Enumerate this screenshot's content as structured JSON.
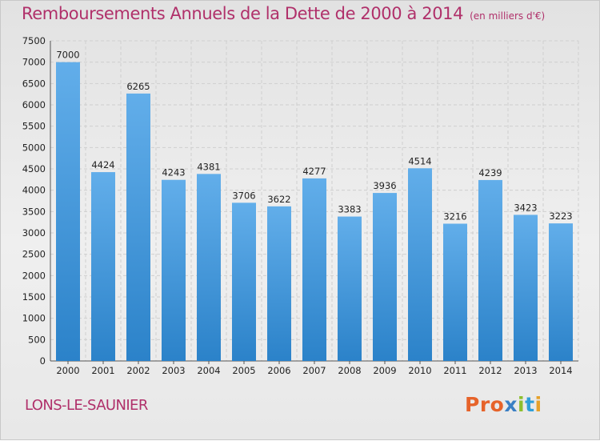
{
  "header": {
    "title": "Remboursements Annuels de la Dette de 2000 à 2014",
    "subtitle": "(en milliers d'€)"
  },
  "footer": {
    "city": "LONS-LE-SAUNIER",
    "brand": "Proxiti",
    "brand_colors": [
      "#e6632a",
      "#e6632a",
      "#e6632a",
      "#3a7fc4",
      "#8dbf2e",
      "#2f9fd8",
      "#e6a12a"
    ]
  },
  "colors": {
    "title": "#b0306a",
    "bar_light": "#62aeea",
    "bar_dark": "#2b82c9",
    "grid": "#cfcfcf"
  },
  "chart_data": {
    "type": "bar",
    "title": "Remboursements Annuels de la Dette de 2000 à 2014",
    "subtitle": "(en milliers d'€)",
    "xlabel": "",
    "ylabel": "",
    "categories": [
      "2000",
      "2001",
      "2002",
      "2003",
      "2004",
      "2005",
      "2006",
      "2007",
      "2008",
      "2009",
      "2010",
      "2011",
      "2012",
      "2013",
      "2014"
    ],
    "values": [
      7000,
      4424,
      6265,
      4243,
      4381,
      3706,
      3622,
      4277,
      3383,
      3936,
      4514,
      3216,
      4239,
      3423,
      3223
    ],
    "ylim": [
      0,
      7500
    ],
    "yticks": [
      0,
      500,
      1000,
      1500,
      2000,
      2500,
      3000,
      3500,
      4000,
      4500,
      5000,
      5500,
      6000,
      6500,
      7000,
      7500
    ],
    "grid": true,
    "data_labels": true
  }
}
